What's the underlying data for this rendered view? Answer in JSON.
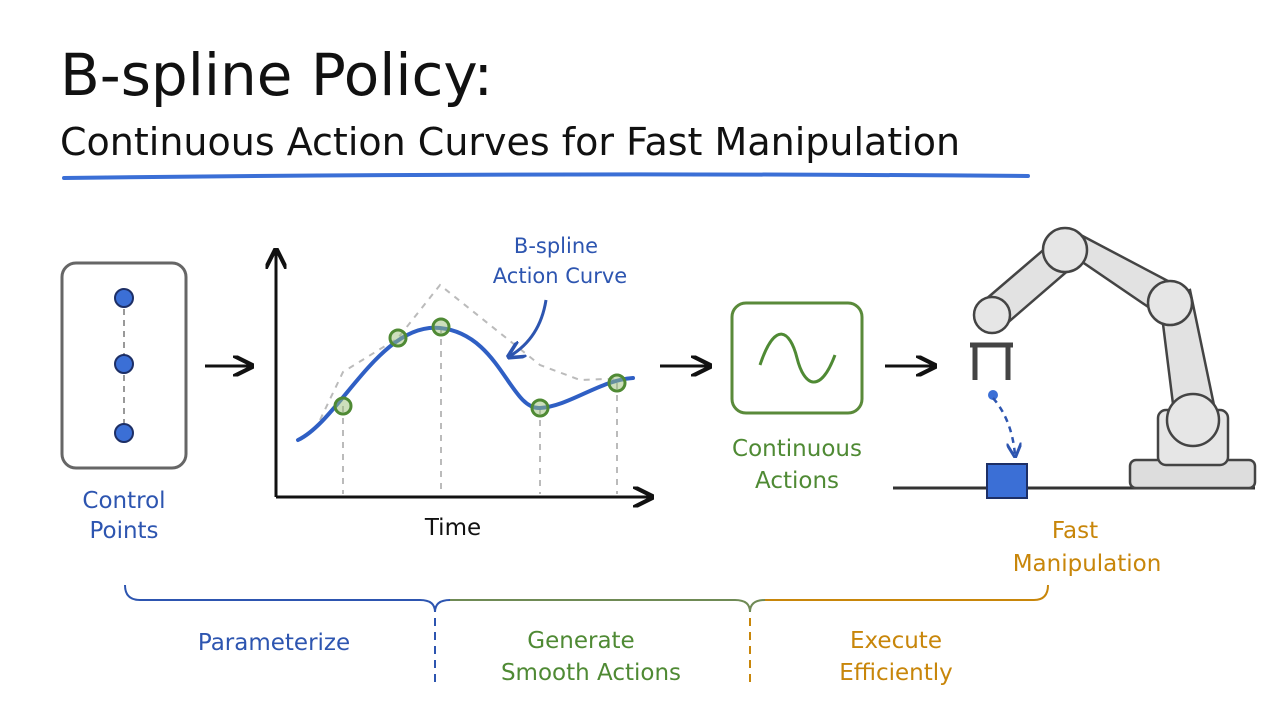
{
  "header": {
    "title": "B-spline Policy:",
    "subtitle": "Continuous Action Curves for Fast Manipulation"
  },
  "nodes": [
    {
      "label": [
        "Control",
        "Points"
      ]
    },
    {
      "axis_label": "Time",
      "annotation": [
        "B-spline",
        "Action Curve"
      ]
    },
    {
      "label": [
        "Continuous",
        "Actions"
      ]
    },
    {
      "label": [
        "Fast",
        "Manipulation"
      ]
    }
  ],
  "stages": [
    {
      "label": [
        "Parameterize"
      ]
    },
    {
      "label": [
        "Generate",
        "Smooth Actions"
      ]
    },
    {
      "label": [
        "Execute",
        "Efficiently"
      ]
    }
  ]
}
